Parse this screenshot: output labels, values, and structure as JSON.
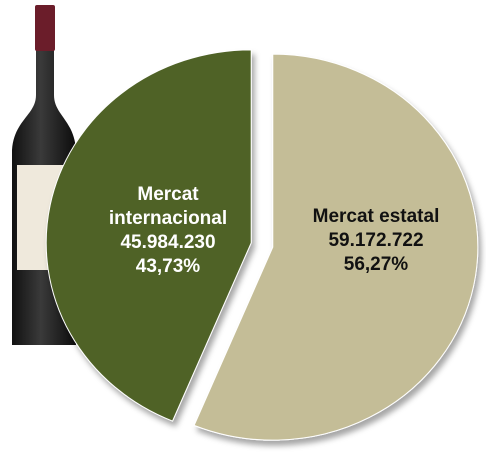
{
  "chart_data": {
    "type": "pie",
    "categories": [
      "Mercat internacional",
      "Mercat estatal"
    ],
    "values": [
      45984230,
      59172722
    ],
    "value_labels": [
      "45.984.230",
      "59.172.722"
    ],
    "percents": [
      43.73,
      56.27
    ],
    "percent_labels": [
      "43,73%",
      "56,27%"
    ],
    "colors": [
      "#4f6228",
      "#c4bd97"
    ],
    "label_colors": [
      "#ffffff",
      "#111111"
    ]
  }
}
